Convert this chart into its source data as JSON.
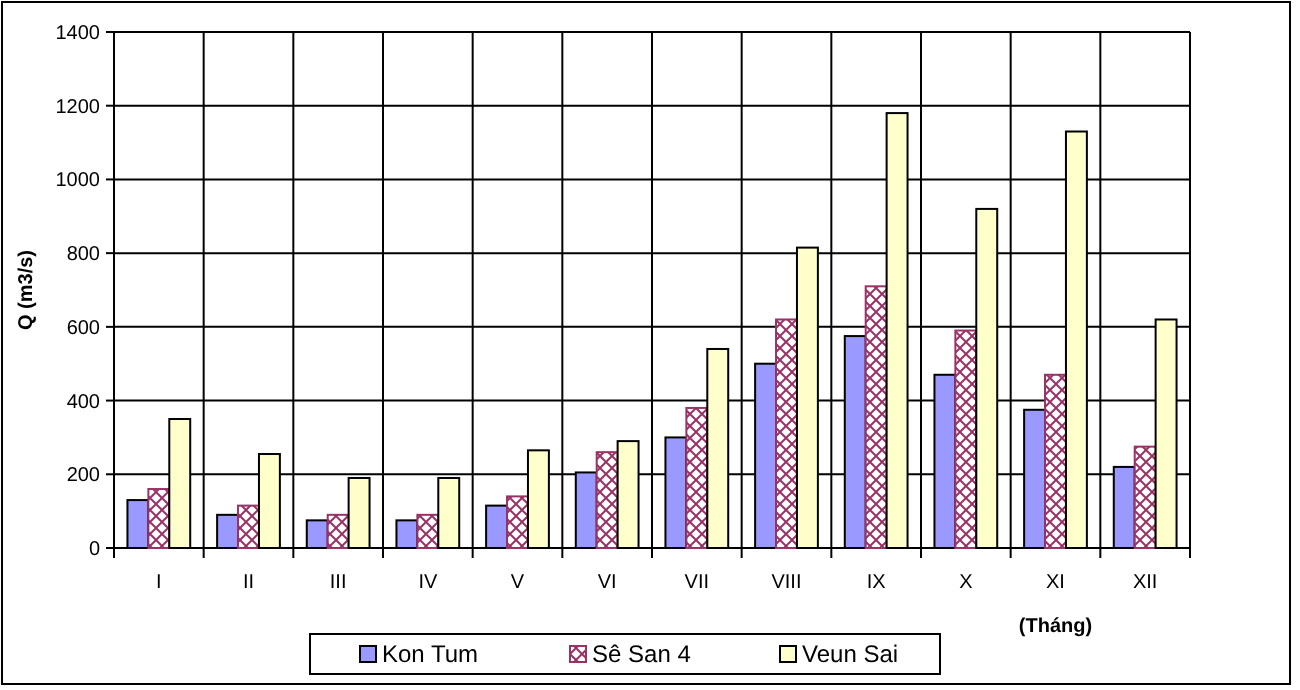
{
  "chart_data": {
    "type": "bar",
    "ylabel": "Q (m3/s)",
    "xlabel": "(Tháng)",
    "categories": [
      "I",
      "II",
      "III",
      "IV",
      "V",
      "VI",
      "VII",
      "VIII",
      "IX",
      "X",
      "XI",
      "XII"
    ],
    "series": [
      {
        "name": "Kon Tum",
        "color": "#9999ff",
        "values": [
          130,
          90,
          75,
          75,
          115,
          205,
          300,
          500,
          575,
          470,
          375,
          220
        ]
      },
      {
        "name": "Sê San 4",
        "color": "#993366",
        "values": [
          160,
          115,
          90,
          90,
          140,
          260,
          380,
          620,
          710,
          590,
          470,
          275
        ]
      },
      {
        "name": "Veun Sai",
        "color": "#ffffcc",
        "values": [
          350,
          255,
          190,
          190,
          265,
          290,
          540,
          815,
          1180,
          920,
          1130,
          620
        ]
      }
    ],
    "ylim": [
      0,
      1400
    ],
    "yticks": [
      0,
      200,
      400,
      600,
      800,
      1000,
      1200,
      1400
    ],
    "grid": true,
    "legend": "bottom"
  }
}
